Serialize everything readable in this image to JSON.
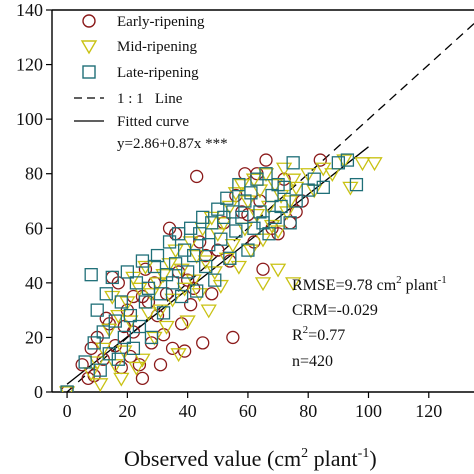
{
  "chart_data": {
    "type": "scatter",
    "title": "",
    "xlabel": {
      "main": "Observed value (cm",
      "sup1": "2",
      "mid": " plant",
      "sup2": "-1",
      "end": ")"
    },
    "ylabel": "",
    "xlim": [
      -5,
      135
    ],
    "ylim": [
      0,
      140
    ],
    "xticks": [
      0,
      20,
      40,
      60,
      80,
      100,
      120
    ],
    "yticks": [
      0,
      20,
      40,
      60,
      80,
      100,
      120,
      140
    ],
    "grid": false,
    "legend_position": "top-left",
    "legend": {
      "early": "Early-ripening",
      "mid": "Mid-ripening",
      "late": "Late-ripening",
      "line11": "1 : 1   Line",
      "fitted": "Fitted curve",
      "equation": "y=2.86+0.87x ***"
    },
    "colors": {
      "early": "#8b1a1a",
      "mid": "#c9c214",
      "late": "#1f6f78",
      "line": "#000000"
    },
    "reference_lines": [
      {
        "name": "1:1 Line",
        "style": "dashed",
        "x": [
          0,
          135
        ],
        "y": [
          0,
          135
        ]
      },
      {
        "name": "Fitted curve",
        "style": "solid",
        "x": [
          0,
          100
        ],
        "y": [
          2.86,
          89.86
        ]
      }
    ],
    "stats": {
      "rmse_main": "RMSE=9.78 cm",
      "rmse_sup1": "2",
      "rmse_mid": " plant",
      "rmse_sup2": "-1",
      "crm": "CRM=-0.029",
      "r2_main": "R",
      "r2_sup": "2",
      "r2_value": "=0.77",
      "n": "n=420"
    },
    "series": [
      {
        "name": "Early-ripening",
        "marker": "circle",
        "points": [
          [
            0,
            0
          ],
          [
            5,
            10
          ],
          [
            7,
            5
          ],
          [
            8,
            16
          ],
          [
            9,
            6
          ],
          [
            10,
            20
          ],
          [
            12,
            12
          ],
          [
            13,
            27
          ],
          [
            14,
            25
          ],
          [
            15,
            42
          ],
          [
            16,
            17
          ],
          [
            17,
            40
          ],
          [
            18,
            9
          ],
          [
            19,
            24
          ],
          [
            20,
            30
          ],
          [
            21,
            13
          ],
          [
            22,
            35
          ],
          [
            22,
            22
          ],
          [
            24,
            10
          ],
          [
            25,
            5
          ],
          [
            25,
            35
          ],
          [
            26,
            45
          ],
          [
            27,
            33
          ],
          [
            28,
            18
          ],
          [
            29,
            40
          ],
          [
            30,
            28
          ],
          [
            31,
            10
          ],
          [
            32,
            21
          ],
          [
            33,
            36
          ],
          [
            34,
            60
          ],
          [
            35,
            16
          ],
          [
            36,
            58
          ],
          [
            37,
            44
          ],
          [
            38,
            25
          ],
          [
            39,
            15
          ],
          [
            40,
            41
          ],
          [
            41,
            32
          ],
          [
            42,
            38
          ],
          [
            43,
            79
          ],
          [
            44,
            55
          ],
          [
            45,
            18
          ],
          [
            46,
            50
          ],
          [
            48,
            36
          ],
          [
            50,
            52
          ],
          [
            52,
            62
          ],
          [
            54,
            48
          ],
          [
            55,
            20
          ],
          [
            56,
            72
          ],
          [
            58,
            66
          ],
          [
            59,
            80
          ],
          [
            60,
            65
          ],
          [
            62,
            55
          ],
          [
            63,
            80
          ],
          [
            64,
            70
          ],
          [
            65,
            45
          ],
          [
            66,
            85
          ],
          [
            68,
            60
          ],
          [
            70,
            58
          ],
          [
            72,
            78
          ],
          [
            74,
            62
          ],
          [
            76,
            66
          ],
          [
            78,
            70
          ],
          [
            84,
            85
          ]
        ]
      },
      {
        "name": "Mid-ripening",
        "marker": "triangle-down",
        "points": [
          [
            0,
            0
          ],
          [
            8,
            7
          ],
          [
            10,
            11
          ],
          [
            11,
            3
          ],
          [
            12,
            16
          ],
          [
            14,
            23
          ],
          [
            15,
            35
          ],
          [
            16,
            10
          ],
          [
            17,
            28
          ],
          [
            18,
            5
          ],
          [
            19,
            15
          ],
          [
            20,
            33
          ],
          [
            21,
            26
          ],
          [
            22,
            42
          ],
          [
            23,
            9
          ],
          [
            24,
            38
          ],
          [
            25,
            12
          ],
          [
            26,
            46
          ],
          [
            27,
            29
          ],
          [
            28,
            36
          ],
          [
            29,
            20
          ],
          [
            30,
            40
          ],
          [
            31,
            30
          ],
          [
            32,
            43
          ],
          [
            33,
            24
          ],
          [
            34,
            47
          ],
          [
            35,
            34
          ],
          [
            36,
            52
          ],
          [
            37,
            14
          ],
          [
            38,
            45
          ],
          [
            39,
            38
          ],
          [
            40,
            26
          ],
          [
            41,
            55
          ],
          [
            42,
            41
          ],
          [
            43,
            50
          ],
          [
            44,
            36
          ],
          [
            45,
            60
          ],
          [
            46,
            48
          ],
          [
            47,
            30
          ],
          [
            48,
            64
          ],
          [
            49,
            44
          ],
          [
            50,
            58
          ],
          [
            51,
            39
          ],
          [
            52,
            62
          ],
          [
            53,
            49
          ],
          [
            54,
            68
          ],
          [
            55,
            54
          ],
          [
            56,
            73
          ],
          [
            57,
            46
          ],
          [
            58,
            76
          ],
          [
            59,
            60
          ],
          [
            60,
            70
          ],
          [
            61,
            52
          ],
          [
            62,
            78
          ],
          [
            63,
            65
          ],
          [
            64,
            74
          ],
          [
            65,
            56
          ],
          [
            66,
            80
          ],
          [
            67,
            68
          ],
          [
            68,
            61
          ],
          [
            69,
            76
          ],
          [
            70,
            59
          ],
          [
            71,
            72
          ],
          [
            72,
            82
          ],
          [
            73,
            66
          ],
          [
            74,
            70
          ],
          [
            75,
            78
          ],
          [
            76,
            75
          ],
          [
            80,
            80
          ],
          [
            82,
            74
          ],
          [
            85,
            82
          ],
          [
            88,
            80
          ],
          [
            92,
            85
          ],
          [
            94,
            75
          ],
          [
            98,
            84
          ],
          [
            102,
            84
          ],
          [
            65,
            40
          ],
          [
            70,
            45
          ],
          [
            75,
            40
          ]
        ]
      },
      {
        "name": "Late-ripening",
        "marker": "square",
        "points": [
          [
            0,
            0
          ],
          [
            6,
            11
          ],
          [
            8,
            43
          ],
          [
            9,
            18
          ],
          [
            10,
            30
          ],
          [
            11,
            8
          ],
          [
            12,
            22
          ],
          [
            13,
            36
          ],
          [
            14,
            14
          ],
          [
            15,
            42
          ],
          [
            16,
            26
          ],
          [
            17,
            12
          ],
          [
            18,
            33
          ],
          [
            19,
            20
          ],
          [
            20,
            44
          ],
          [
            21,
            28
          ],
          [
            22,
            16
          ],
          [
            23,
            40
          ],
          [
            24,
            24
          ],
          [
            25,
            48
          ],
          [
            26,
            33
          ],
          [
            27,
            38
          ],
          [
            28,
            20
          ],
          [
            29,
            46
          ],
          [
            30,
            50
          ],
          [
            31,
            36
          ],
          [
            32,
            29
          ],
          [
            33,
            43
          ],
          [
            34,
            55
          ],
          [
            35,
            40
          ],
          [
            36,
            47
          ],
          [
            37,
            58
          ],
          [
            38,
            35
          ],
          [
            39,
            52
          ],
          [
            40,
            44
          ],
          [
            41,
            60
          ],
          [
            42,
            50
          ],
          [
            43,
            37
          ],
          [
            44,
            58
          ],
          [
            45,
            64
          ],
          [
            46,
            46
          ],
          [
            47,
            54
          ],
          [
            48,
            62
          ],
          [
            49,
            41
          ],
          [
            50,
            67
          ],
          [
            51,
            56
          ],
          [
            52,
            64
          ],
          [
            53,
            71
          ],
          [
            54,
            49
          ],
          [
            55,
            66
          ],
          [
            56,
            59
          ],
          [
            57,
            76
          ],
          [
            58,
            64
          ],
          [
            59,
            70
          ],
          [
            60,
            52
          ],
          [
            61,
            73
          ],
          [
            62,
            60
          ],
          [
            63,
            78
          ],
          [
            64,
            66
          ],
          [
            65,
            62
          ],
          [
            66,
            80
          ],
          [
            67,
            58
          ],
          [
            68,
            72
          ],
          [
            69,
            64
          ],
          [
            70,
            76
          ],
          [
            71,
            68
          ],
          [
            72,
            75
          ],
          [
            74,
            62
          ],
          [
            75,
            84
          ],
          [
            76,
            70
          ],
          [
            80,
            74
          ],
          [
            82,
            78
          ],
          [
            85,
            75
          ],
          [
            90,
            84
          ],
          [
            93,
            85
          ],
          [
            96,
            76
          ]
        ]
      }
    ]
  }
}
